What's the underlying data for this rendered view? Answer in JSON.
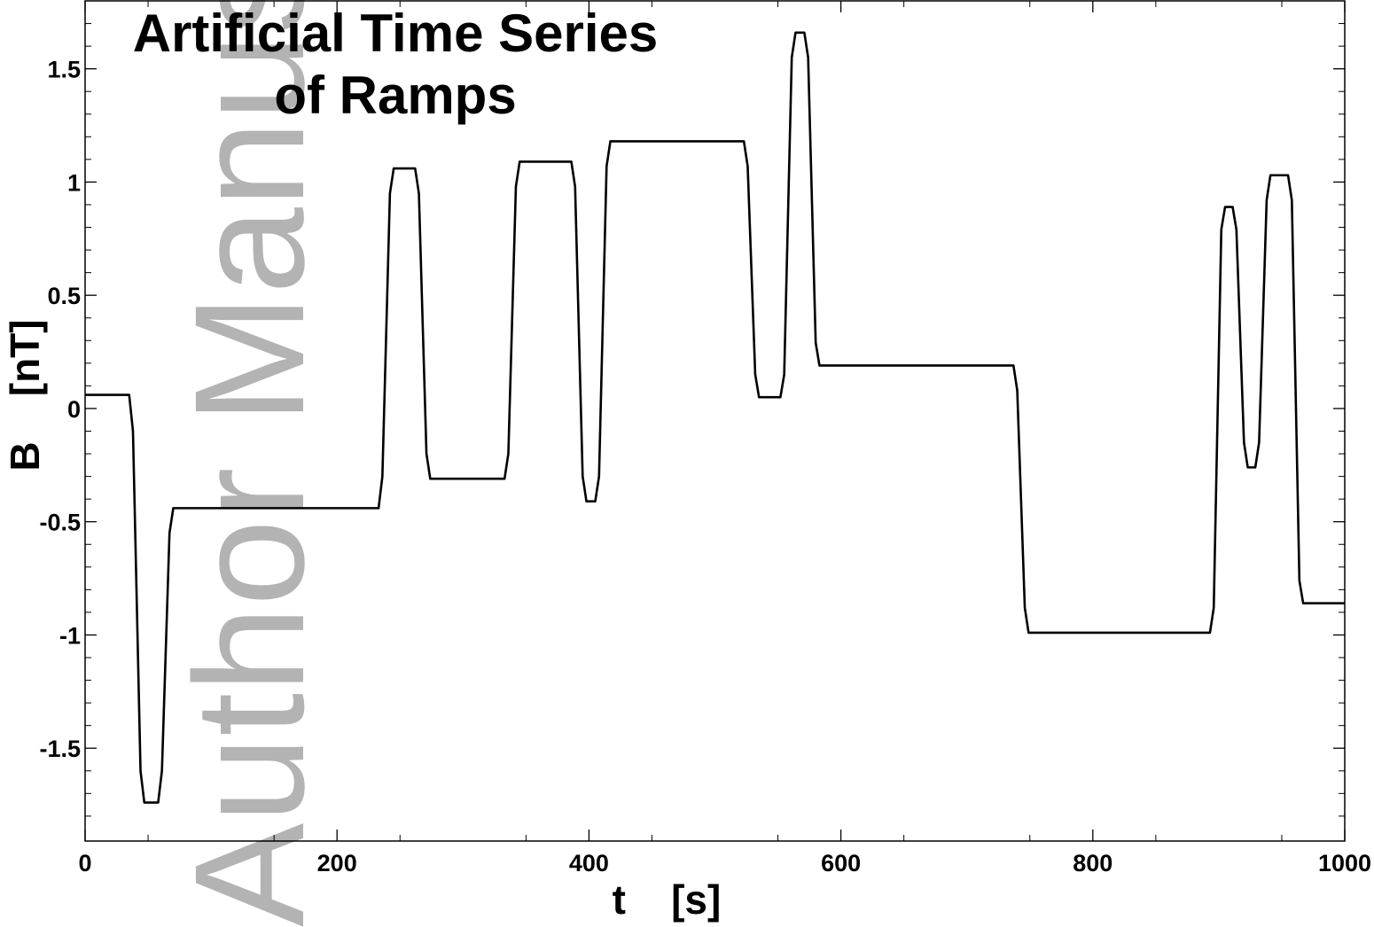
{
  "watermark": "Author Manuscript",
  "chart_data": {
    "type": "line",
    "title_lines": [
      "Artificial Time Series",
      "of Ramps"
    ],
    "xlabel": "t    [s]",
    "ylabel": "B    [nT]",
    "xlim": [
      0,
      1000
    ],
    "ylim": [
      -1.91,
      1.8
    ],
    "xticks": [
      0,
      200,
      400,
      600,
      800,
      1000
    ],
    "xtick_labels": [
      "0",
      "200",
      "400",
      "600",
      "800",
      "1000"
    ],
    "yticks": [
      -1.5,
      -1,
      -0.5,
      0,
      0.5,
      1,
      1.5
    ],
    "ytick_labels": [
      "-1.5",
      "-1",
      "-0.5",
      "0",
      "0.5",
      "1",
      "1.5"
    ],
    "grid": false,
    "line_color": "#000000",
    "series": [
      {
        "x": [
          0,
          35,
          38,
          44,
          47,
          58,
          61,
          67,
          70,
          233,
          236,
          242,
          245,
          262,
          265,
          271,
          274,
          333,
          336,
          342,
          345,
          386,
          389,
          395,
          398,
          405,
          408,
          414,
          417,
          523,
          526,
          532,
          535,
          552,
          555,
          561,
          564,
          571,
          574,
          580,
          583,
          737,
          740,
          746,
          749,
          893,
          896,
          902,
          905,
          911,
          914,
          920,
          923,
          929,
          932,
          938,
          941,
          955,
          958,
          964,
          967,
          1000
        ],
        "y": [
          0.06,
          0.06,
          -0.1,
          -1.6,
          -1.74,
          -1.74,
          -1.6,
          -0.55,
          -0.44,
          -0.44,
          -0.3,
          0.95,
          1.06,
          1.06,
          0.95,
          -0.2,
          -0.31,
          -0.31,
          -0.2,
          0.98,
          1.09,
          1.09,
          0.98,
          -0.3,
          -0.41,
          -0.41,
          -0.3,
          1.07,
          1.18,
          1.18,
          1.07,
          0.15,
          0.05,
          0.05,
          0.15,
          1.55,
          1.66,
          1.66,
          1.55,
          0.29,
          0.19,
          0.19,
          0.08,
          -0.88,
          -0.99,
          -0.99,
          -0.88,
          0.79,
          0.89,
          0.89,
          0.79,
          -0.15,
          -0.26,
          -0.26,
          -0.15,
          0.92,
          1.03,
          1.03,
          0.92,
          -0.76,
          -0.86,
          -0.86
        ]
      }
    ]
  }
}
